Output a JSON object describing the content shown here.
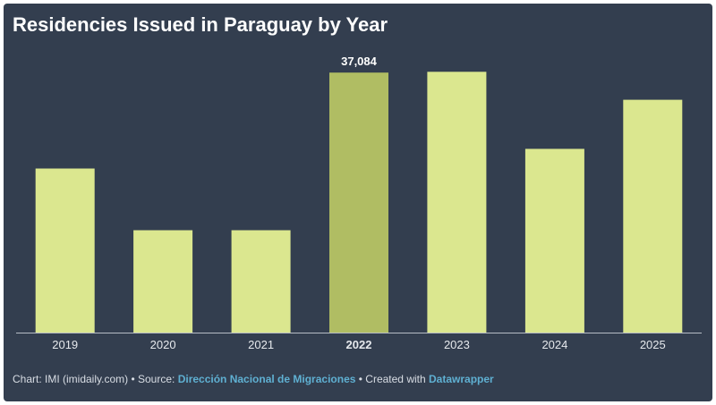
{
  "title": "Residencies Issued in Paraguay by Year",
  "footer": {
    "chart_prefix": "Chart: IMI (imidaily.com) • Source: ",
    "source_link": "Dirección Nacional de Migraciones",
    "created_prefix": " • Created with ",
    "created_link": "Datawrapper"
  },
  "colors": {
    "background": "#333e4f",
    "bar": "#dbe78f",
    "bar_highlight": "#b0bd63",
    "axis": "#b7bdc6",
    "tick_label": "#e6e9ed",
    "value_label": "#ffffff",
    "link": "#5fb0d2"
  },
  "chart_data": {
    "type": "bar",
    "title": "Residencies Issued in Paraguay by Year",
    "categories": [
      "2019",
      "2020",
      "2021",
      "2022",
      "2023",
      "2024",
      "2025"
    ],
    "values": [
      23400,
      14600,
      14600,
      37084,
      37200,
      26200,
      33200
    ],
    "ylim": [
      0,
      38000
    ],
    "highlight": "2022",
    "data_labels": [
      {
        "category": "2022",
        "text": "37,084"
      }
    ],
    "xlabel": "",
    "ylabel": "",
    "grid": false,
    "legend": "none"
  }
}
